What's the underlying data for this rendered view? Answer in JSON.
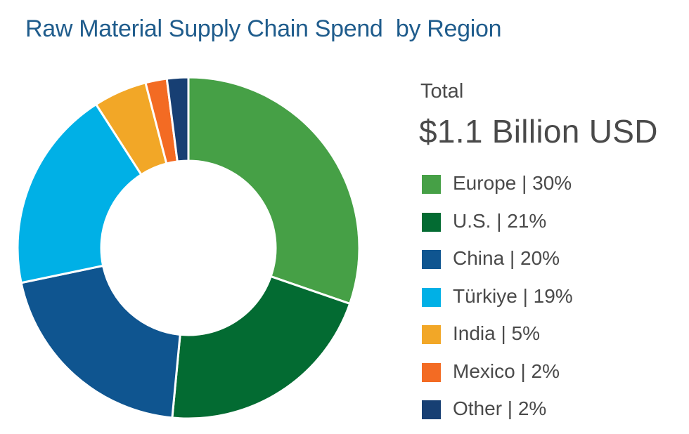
{
  "chart_data": {
    "type": "pie",
    "title": "Raw Material Supply Chain Spend  by Region",
    "total_label": "Total",
    "total_value": "$1.1 Billion USD",
    "categories": [
      "Europe",
      "U.S.",
      "China",
      "Türkiye",
      "India",
      "Mexico",
      "Other"
    ],
    "values": [
      30,
      21,
      20,
      19,
      5,
      2,
      2
    ],
    "legend_labels": [
      "Europe | 30%",
      "U.S. | 21%",
      "China | 20%",
      "Türkiye | 19%",
      "India | 5%",
      "Mexico | 2%",
      "Other | 2%"
    ],
    "colors": [
      "#46a046",
      "#036b32",
      "#0f5590",
      "#00b0e6",
      "#f2a727",
      "#f36b23",
      "#173f73"
    ],
    "legend_placement": "right"
  }
}
